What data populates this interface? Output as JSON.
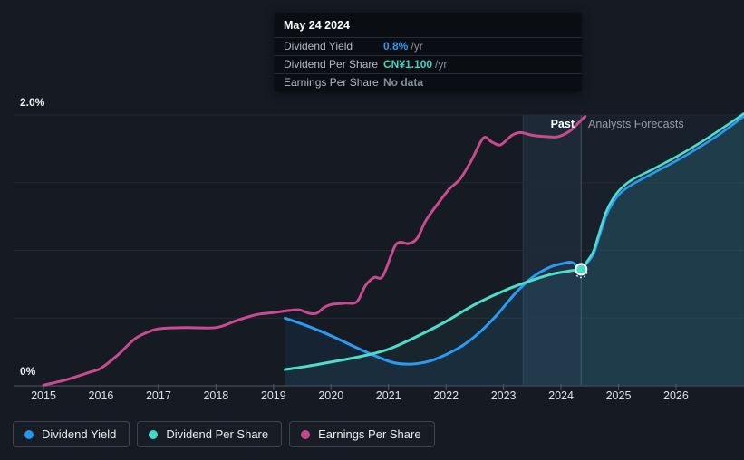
{
  "tooltip": {
    "date": "May 24 2024",
    "rows": [
      {
        "label": "Dividend Yield",
        "value": "0.8%",
        "suffix": "/yr",
        "value_color": "#2d9cf4"
      },
      {
        "label": "Dividend Per Share",
        "value": "CN¥1.100",
        "suffix": "/yr",
        "value_color": "#3fd6c5"
      },
      {
        "label": "Earnings Per Share",
        "value": "No data",
        "suffix": "",
        "value_color": "#878d96"
      }
    ]
  },
  "zones": {
    "past_label": "Past",
    "forecast_label": "Analysts Forecasts"
  },
  "axis": {
    "y_top_label": "2.0%",
    "y_bottom_label": "0%"
  },
  "legend": [
    {
      "label": "Dividend Yield",
      "color": "#2196f3"
    },
    {
      "label": "Dividend Per Share",
      "color": "#43d9c4"
    },
    {
      "label": "Earnings Per Share",
      "color": "#c2498a"
    }
  ],
  "colors": {
    "background": "#151a23",
    "gridline": "#232a35",
    "axis_line": "#3d4450",
    "tick": "#525a66",
    "divider": "#9db4cc",
    "highlight_band": "#6aa0d7",
    "dividend_yield": "#2b9af3",
    "dividend_per_share": "#4fdcc8",
    "earnings_per_share": "#c74b8e",
    "marker_fill": "#4ed9c7",
    "marker_ring": "#ffffff"
  },
  "chart_data": {
    "type": "line",
    "title": "Dividend history and forecast",
    "x_axis": {
      "ticks": [
        "2015",
        "2016",
        "2017",
        "2018",
        "2019",
        "2020",
        "2021",
        "2022",
        "2023",
        "2024",
        "2025",
        "2026"
      ],
      "range": [
        2014.5,
        2027.2
      ]
    },
    "y_axis": {
      "tick_labels": [
        "0%",
        "2.0%"
      ],
      "range_percent": [
        0,
        2.0
      ],
      "gridline_values": [
        0.5,
        1.0,
        1.5,
        2.0
      ],
      "grid": true
    },
    "today_x": 2024.35,
    "highlight_band_x": [
      2023.34,
      2024.35
    ],
    "legend_position": "bottom-left",
    "note": "y values are in percent-of-axis units (0 to 2.0%); Dividend Per Share is plotted rescaled onto the same axis",
    "series": [
      {
        "name": "Earnings Per Share",
        "color": "#c74b8e",
        "region": "past-only",
        "points": [
          [
            2015.0,
            0.005
          ],
          [
            2015.4,
            0.045
          ],
          [
            2015.8,
            0.1
          ],
          [
            2016.0,
            0.13
          ],
          [
            2016.3,
            0.23
          ],
          [
            2016.6,
            0.35
          ],
          [
            2016.9,
            0.41
          ],
          [
            2017.1,
            0.425
          ],
          [
            2017.5,
            0.43
          ],
          [
            2018.0,
            0.43
          ],
          [
            2018.35,
            0.48
          ],
          [
            2018.7,
            0.525
          ],
          [
            2019.0,
            0.54
          ],
          [
            2019.25,
            0.555
          ],
          [
            2019.45,
            0.56
          ],
          [
            2019.62,
            0.535
          ],
          [
            2019.75,
            0.535
          ],
          [
            2019.87,
            0.575
          ],
          [
            2020.0,
            0.6
          ],
          [
            2020.25,
            0.61
          ],
          [
            2020.45,
            0.62
          ],
          [
            2020.6,
            0.74
          ],
          [
            2020.75,
            0.8
          ],
          [
            2020.9,
            0.81
          ],
          [
            2021.1,
            1.02
          ],
          [
            2021.2,
            1.06
          ],
          [
            2021.35,
            1.05
          ],
          [
            2021.5,
            1.09
          ],
          [
            2021.65,
            1.22
          ],
          [
            2021.85,
            1.34
          ],
          [
            2022.05,
            1.45
          ],
          [
            2022.25,
            1.53
          ],
          [
            2022.45,
            1.67
          ],
          [
            2022.65,
            1.83
          ],
          [
            2022.8,
            1.8
          ],
          [
            2022.95,
            1.78
          ],
          [
            2023.15,
            1.85
          ],
          [
            2023.3,
            1.87
          ],
          [
            2023.5,
            1.85
          ],
          [
            2023.75,
            1.84
          ],
          [
            2023.95,
            1.84
          ],
          [
            2024.15,
            1.88
          ],
          [
            2024.3,
            1.94
          ],
          [
            2024.42,
            1.99
          ]
        ]
      },
      {
        "name": "Dividend Yield",
        "color": "#2b9af3",
        "region": "past+forecast",
        "points_past": [
          [
            2019.2,
            0.5
          ],
          [
            2019.6,
            0.44
          ],
          [
            2020.0,
            0.37
          ],
          [
            2020.4,
            0.29
          ],
          [
            2020.8,
            0.215
          ],
          [
            2021.1,
            0.17
          ],
          [
            2021.4,
            0.16
          ],
          [
            2021.7,
            0.18
          ],
          [
            2022.0,
            0.23
          ],
          [
            2022.3,
            0.3
          ],
          [
            2022.6,
            0.4
          ],
          [
            2022.9,
            0.53
          ],
          [
            2023.2,
            0.68
          ],
          [
            2023.5,
            0.8
          ],
          [
            2023.8,
            0.875
          ],
          [
            2024.05,
            0.905
          ],
          [
            2024.2,
            0.91
          ],
          [
            2024.35,
            0.86
          ]
        ],
        "points_forecast": [
          [
            2024.35,
            0.86
          ],
          [
            2024.55,
            0.96
          ],
          [
            2024.65,
            1.08
          ],
          [
            2024.78,
            1.25
          ],
          [
            2024.9,
            1.35
          ],
          [
            2025.05,
            1.43
          ],
          [
            2025.25,
            1.49
          ],
          [
            2025.6,
            1.57
          ],
          [
            2026.0,
            1.66
          ],
          [
            2026.4,
            1.76
          ],
          [
            2026.8,
            1.87
          ],
          [
            2027.18,
            1.99
          ]
        ]
      },
      {
        "name": "Dividend Per Share",
        "color": "#4fdcc8",
        "region": "past+forecast",
        "points_past": [
          [
            2019.2,
            0.12
          ],
          [
            2019.6,
            0.145
          ],
          [
            2020.0,
            0.175
          ],
          [
            2020.5,
            0.215
          ],
          [
            2021.0,
            0.27
          ],
          [
            2021.5,
            0.365
          ],
          [
            2022.0,
            0.475
          ],
          [
            2022.5,
            0.6
          ],
          [
            2023.0,
            0.7
          ],
          [
            2023.4,
            0.765
          ],
          [
            2023.8,
            0.82
          ],
          [
            2024.1,
            0.845
          ],
          [
            2024.35,
            0.86
          ]
        ],
        "points_forecast": [
          [
            2024.35,
            0.86
          ],
          [
            2024.55,
            0.98
          ],
          [
            2024.65,
            1.11
          ],
          [
            2024.78,
            1.28
          ],
          [
            2024.9,
            1.38
          ],
          [
            2025.05,
            1.46
          ],
          [
            2025.25,
            1.525
          ],
          [
            2025.6,
            1.6
          ],
          [
            2026.0,
            1.69
          ],
          [
            2026.4,
            1.79
          ],
          [
            2026.8,
            1.9
          ],
          [
            2027.18,
            2.01
          ]
        ]
      }
    ],
    "marker": {
      "x": 2024.35,
      "y": 0.86,
      "series": "Dividend Per Share"
    }
  }
}
